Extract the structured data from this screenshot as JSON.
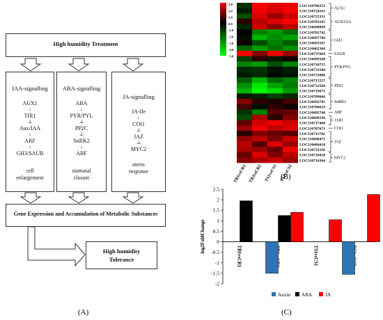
{
  "panel_labels": {
    "a": "(A)",
    "b": "(B)",
    "c": "(C)"
  },
  "diagram": {
    "top_box": "High humidity Treatment",
    "columns": [
      {
        "title": "IAA-signalling",
        "items": [
          "AUX1",
          "TIR1",
          "Aux/IAA",
          "ARF",
          "GH3/SAUR"
        ],
        "links": [
          "↓",
          "⊥",
          "↓",
          "↓"
        ],
        "outcome": [
          "cell",
          "enlargement"
        ]
      },
      {
        "title": "ABA-signalling",
        "items": [
          "ABA",
          "PYR/PYL",
          "PP2C",
          "SnRK2",
          "ABF"
        ],
        "links": [
          "↓",
          "⊥",
          "⊥",
          "↓"
        ],
        "outcome": [
          "stomatal",
          "closure"
        ]
      },
      {
        "title": "JA-signalling",
        "items": [
          "JA-Ile",
          "COI1",
          "JAZ",
          "MYC2"
        ],
        "links": [
          "↓",
          "⊥",
          "⊥"
        ],
        "outcome": [
          "stress",
          "response"
        ]
      }
    ],
    "gene_box": "Gene Expression and Accumulation of Metabolic Substances",
    "final_box": [
      "High humidity",
      "Tolerance"
    ]
  },
  "heatmap": {
    "scale": [
      "3.0",
      "2.0",
      "1.0",
      "0.0",
      "-1.0",
      "-2.0",
      "-3.0",
      "-4.0",
      "-5.0"
    ],
    "samples": [
      "TB1vsCR1",
      "TB2vsCR2",
      "TS1vsCS1",
      "TS2vsCS2"
    ],
    "genes": [
      "LOC110706251",
      "LOC110724163",
      "LOC110725331",
      "LOC110703165",
      "LOC110698899",
      "LOC110701742",
      "LOC110697786",
      "LOC110693167",
      "LOC110682368",
      "LOC110737664",
      "LOC110699340",
      "LOC110710755",
      "LOC110733580",
      "LOC110733886",
      "LOC110715557",
      "LOC110722568",
      "LOC110719675",
      "LOC110709666",
      "LOC110692705",
      "LOC110706619",
      "LOC110695740",
      "LOC110696596",
      "LOC110717406",
      "LOC110707671",
      "LOC110711782",
      "LOC110698475",
      "LOC110684410",
      "LOC110723118",
      "LOC110716830",
      "LOC110714364"
    ],
    "groups": [
      {
        "label": "AUX1"
      },
      {
        "label": "AUX/IAA"
      },
      {
        "label": "GH3"
      },
      {
        "label": "SAUR"
      },
      {
        "label": "PYR/PYL"
      },
      {
        "label": "PP2C"
      },
      {
        "label": "SnRK2"
      },
      {
        "label": "ABF"
      },
      {
        "label": "JAR1"
      },
      {
        "label": "COI1"
      },
      {
        "label": "JAZ"
      },
      {
        "label": "MYC2"
      }
    ],
    "values": [
      [
        -1.0,
        3.0,
        2.6,
        2.8
      ],
      [
        -0.5,
        2.8,
        2.5,
        2.9
      ],
      [
        -1.5,
        2.6,
        1.8,
        2.4
      ],
      [
        0.5,
        2.2,
        2.6,
        3.0
      ],
      [
        -0.8,
        2.4,
        1.6,
        2.2
      ],
      [
        0.0,
        -2.5,
        -3.0,
        -2.2
      ],
      [
        -0.3,
        -3.5,
        -2.8,
        -3.2
      ],
      [
        0.2,
        -1.5,
        -2.5,
        -1.8
      ],
      [
        -2.0,
        -3.0,
        -2.2,
        -2.8
      ],
      [
        3.0,
        1.5,
        2.8,
        1.8
      ],
      [
        -1.2,
        0.5,
        -0.5,
        0.2
      ],
      [
        -2.5,
        -3.0,
        -1.5,
        -2.5
      ],
      [
        -0.8,
        -1.0,
        -0.3,
        -0.6
      ],
      [
        -0.5,
        -0.8,
        -0.2,
        -0.4
      ],
      [
        -1.8,
        -3.5,
        -2.0,
        -2.6
      ],
      [
        -2.8,
        -4.5,
        -3.2,
        -2.4
      ],
      [
        -3.5,
        -5.0,
        -4.2,
        -3.0
      ],
      [
        -0.4,
        -0.6,
        -1.2,
        -0.8
      ],
      [
        1.5,
        0.5,
        0.3,
        0.8
      ],
      [
        0.8,
        -0.3,
        0.5,
        0.2
      ],
      [
        -1.0,
        -2.5,
        1.0,
        1.2
      ],
      [
        -1.5,
        2.0,
        0.5,
        1.5
      ],
      [
        1.2,
        2.5,
        2.8,
        2.4
      ],
      [
        1.8,
        2.8,
        2.2,
        2.6
      ],
      [
        0.5,
        1.5,
        1.2,
        1.0
      ],
      [
        1.8,
        2.2,
        1.5,
        2.4
      ],
      [
        2.2,
        1.0,
        2.6,
        1.8
      ],
      [
        2.0,
        1.8,
        1.2,
        2.8
      ],
      [
        1.2,
        2.6,
        1.5,
        2.2
      ],
      [
        1.6,
        2.0,
        2.4,
        1.8
      ]
    ],
    "colors": {
      "high": "#ff0000",
      "mid": "#000000",
      "low": "#00ff00"
    }
  },
  "chart_data": {
    "type": "bar",
    "categories": [
      "TB1vsCR1",
      "TB2vsCR2",
      "TS1vsCS1",
      "TS2vsCS2"
    ],
    "series": [
      {
        "name": "Auxin",
        "color": "#2e75b6",
        "values": [
          null,
          -1.5,
          null,
          -1.55
        ]
      },
      {
        "name": "ABA",
        "color": "#000000",
        "values": [
          1.95,
          1.25,
          null,
          null
        ]
      },
      {
        "name": "JA",
        "color": "#ff0000",
        "values": [
          null,
          1.4,
          1.05,
          2.25
        ]
      }
    ],
    "ylabel": "log2FoldChange",
    "ylim": [
      -2,
      2.5
    ],
    "yticks": [
      "-2",
      "-1.5",
      "-1",
      "-0.5",
      "0",
      "0.5",
      "1",
      "1.5",
      "2",
      "2.5"
    ]
  }
}
